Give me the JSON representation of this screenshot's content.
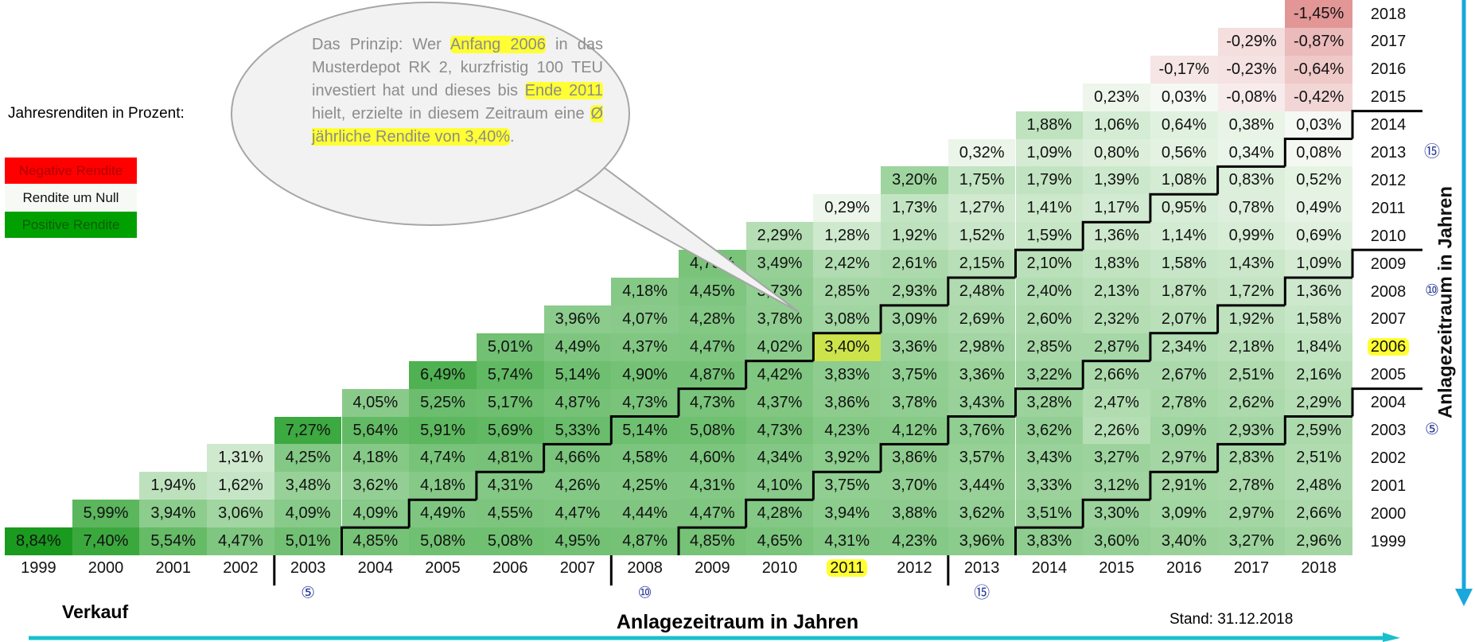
{
  "legend": {
    "title": "Jahresrenditen in Prozent:",
    "items": [
      "Negative Rendite",
      "Rendite um Null",
      "Positive Rendite"
    ]
  },
  "bubble": {
    "segments": [
      {
        "text": "Das Prinzip: Wer ",
        "highlight": false
      },
      {
        "text": "Anfang 2006",
        "highlight": true
      },
      {
        "text": " in das Musterdepot RK 2, kurzfristig 100 TEU investiert hat und dieses bis ",
        "highlight": false
      },
      {
        "text": "Ende 2011",
        "highlight": true
      },
      {
        "text": " hielt, erzielte in diesem Zeitraum eine ",
        "highlight": false
      },
      {
        "text": "Ø jährliche Rendite von 3,40%",
        "highlight": true
      },
      {
        "text": ".",
        "highlight": false
      }
    ]
  },
  "table": {
    "columns": [
      1999,
      2000,
      2001,
      2002,
      2003,
      2004,
      2005,
      2006,
      2007,
      2008,
      2009,
      2010,
      2011,
      2012,
      2013,
      2014,
      2015,
      2016,
      2017,
      2018
    ],
    "rows": [
      {
        "year": 2018,
        "cells": [
          "-1,45%"
        ]
      },
      {
        "year": 2017,
        "cells": [
          "-0,29%",
          "-0,87%"
        ]
      },
      {
        "year": 2016,
        "cells": [
          "-0,17%",
          "-0,23%",
          "-0,64%"
        ]
      },
      {
        "year": 2015,
        "cells": [
          "0,23%",
          "0,03%",
          "-0,08%",
          "-0,42%"
        ]
      },
      {
        "year": 2014,
        "cells": [
          "1,88%",
          "1,06%",
          "0,64%",
          "0,38%",
          "0,03%"
        ]
      },
      {
        "year": 2013,
        "cells": [
          "0,32%",
          "1,09%",
          "0,80%",
          "0,56%",
          "0,34%",
          "0,08%"
        ]
      },
      {
        "year": 2012,
        "cells": [
          "3,20%",
          "1,75%",
          "1,79%",
          "1,39%",
          "1,08%",
          "0,83%",
          "0,52%"
        ]
      },
      {
        "year": 2011,
        "cells": [
          "0,29%",
          "1,73%",
          "1,27%",
          "1,41%",
          "1,17%",
          "0,95%",
          "0,78%",
          "0,49%"
        ]
      },
      {
        "year": 2010,
        "cells": [
          "2,29%",
          "1,28%",
          "1,92%",
          "1,52%",
          "1,59%",
          "1,36%",
          "1,14%",
          "0,99%",
          "0,69%"
        ]
      },
      {
        "year": 2009,
        "cells": [
          "4,73%",
          "3,49%",
          "2,42%",
          "2,61%",
          "2,15%",
          "2,10%",
          "1,83%",
          "1,58%",
          "1,43%",
          "1,09%"
        ]
      },
      {
        "year": 2008,
        "cells": [
          "4,18%",
          "4,45%",
          "3,73%",
          "2,85%",
          "2,93%",
          "2,48%",
          "2,40%",
          "2,13%",
          "1,87%",
          "1,72%",
          "1,36%"
        ]
      },
      {
        "year": 2007,
        "cells": [
          "3,96%",
          "4,07%",
          "4,28%",
          "3,78%",
          "3,08%",
          "3,09%",
          "2,69%",
          "2,60%",
          "2,32%",
          "2,07%",
          "1,92%",
          "1,58%"
        ]
      },
      {
        "year": 2006,
        "cells": [
          "5,01%",
          "4,49%",
          "4,37%",
          "4,47%",
          "4,02%",
          "3,40%",
          "3,36%",
          "2,98%",
          "2,85%",
          "2,87%",
          "2,34%",
          "2,18%",
          "1,84%"
        ]
      },
      {
        "year": 2005,
        "cells": [
          "6,49%",
          "5,74%",
          "5,14%",
          "4,90%",
          "4,87%",
          "4,42%",
          "3,83%",
          "3,75%",
          "3,36%",
          "3,22%",
          "2,66%",
          "2,67%",
          "2,51%",
          "2,16%"
        ]
      },
      {
        "year": 2004,
        "cells": [
          "4,05%",
          "5,25%",
          "5,17%",
          "4,87%",
          "4,73%",
          "4,73%",
          "4,37%",
          "3,86%",
          "3,78%",
          "3,43%",
          "3,28%",
          "2,47%",
          "2,78%",
          "2,62%",
          "2,29%"
        ]
      },
      {
        "year": 2003,
        "cells": [
          "7,27%",
          "5,64%",
          "5,91%",
          "5,69%",
          "5,33%",
          "5,14%",
          "5,08%",
          "4,73%",
          "4,23%",
          "4,12%",
          "3,76%",
          "3,62%",
          "2,26%",
          "3,09%",
          "2,93%",
          "2,59%"
        ]
      },
      {
        "year": 2002,
        "cells": [
          "1,31%",
          "4,25%",
          "4,18%",
          "4,74%",
          "4,81%",
          "4,66%",
          "4,58%",
          "4,60%",
          "4,34%",
          "3,92%",
          "3,86%",
          "3,57%",
          "3,43%",
          "3,27%",
          "2,97%",
          "2,83%",
          "2,51%"
        ]
      },
      {
        "year": 2001,
        "cells": [
          "1,94%",
          "1,62%",
          "3,48%",
          "3,62%",
          "4,18%",
          "4,31%",
          "4,26%",
          "4,25%",
          "4,31%",
          "4,10%",
          "3,75%",
          "3,70%",
          "3,44%",
          "3,33%",
          "3,12%",
          "2,91%",
          "2,78%",
          "2,48%"
        ]
      },
      {
        "year": 2000,
        "cells": [
          "5,99%",
          "3,94%",
          "3,06%",
          "4,09%",
          "4,09%",
          "4,49%",
          "4,55%",
          "4,47%",
          "4,44%",
          "4,47%",
          "4,28%",
          "3,94%",
          "3,88%",
          "3,62%",
          "3,51%",
          "3,30%",
          "3,09%",
          "2,97%",
          "2,66%"
        ]
      },
      {
        "year": 1999,
        "cells": [
          "8,84%",
          "7,40%",
          "5,54%",
          "4,47%",
          "5,01%",
          "4,85%",
          "5,08%",
          "5,08%",
          "4,95%",
          "4,87%",
          "4,85%",
          "4,65%",
          "4,31%",
          "4,23%",
          "3,96%",
          "3,83%",
          "3,60%",
          "3,40%",
          "3,27%",
          "2,96%"
        ]
      }
    ],
    "highlight": {
      "row_year": 2006,
      "column_year": 2011
    }
  },
  "holding_periods": [
    {
      "years": 5,
      "label": "⑤"
    },
    {
      "years": 10,
      "label": "⑩"
    },
    {
      "years": 15,
      "label": "⑮"
    }
  ],
  "sale_label": "Verkauf",
  "x_axis_title": "Anlagezeitraum in Jahren",
  "y_axis_title": "Anlagezeitraum in Jahren",
  "date_note": "Stand: 31.12.2018"
}
